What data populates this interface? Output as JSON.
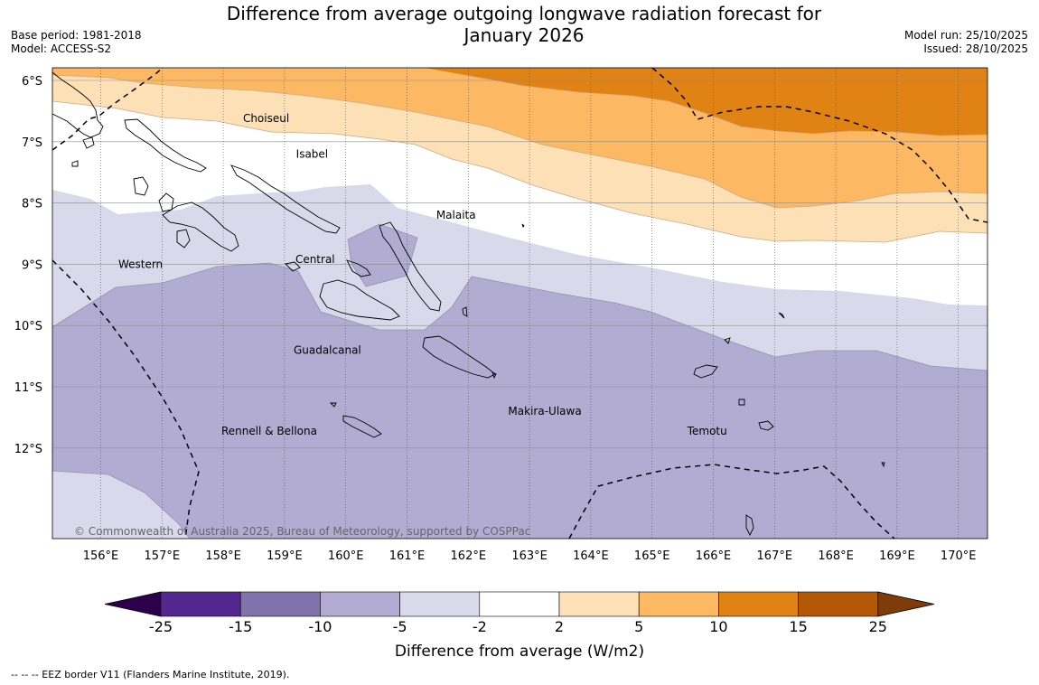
{
  "title_line1": "Difference from average outgoing longwave radiation forecast for",
  "title_line2": "January 2026",
  "base_period": "Base period: 1981-2018",
  "model": "Model: ACCESS-S2",
  "model_run": "Model run: 25/10/2025",
  "issued": "Issued: 28/10/2025",
  "latitudes": [
    {
      "value": -6,
      "label": "6°S"
    },
    {
      "value": -7,
      "label": "7°S"
    },
    {
      "value": -8,
      "label": "8°S"
    },
    {
      "value": -9,
      "label": "9°S"
    },
    {
      "value": -10,
      "label": "10°S"
    },
    {
      "value": -11,
      "label": "11°S"
    },
    {
      "value": -12,
      "label": "12°S"
    }
  ],
  "longitudes": [
    {
      "value": 156,
      "label": "156°E"
    },
    {
      "value": 157,
      "label": "157°E"
    },
    {
      "value": 158,
      "label": "158°E"
    },
    {
      "value": 159,
      "label": "159°E"
    },
    {
      "value": 160,
      "label": "160°E"
    },
    {
      "value": 161,
      "label": "161°E"
    },
    {
      "value": 162,
      "label": "162°E"
    },
    {
      "value": 163,
      "label": "163°E"
    },
    {
      "value": 164,
      "label": "164°E"
    },
    {
      "value": 165,
      "label": "165°E"
    },
    {
      "value": 166,
      "label": "166°E"
    },
    {
      "value": 167,
      "label": "167°E"
    },
    {
      "value": 168,
      "label": "168°E"
    },
    {
      "value": 169,
      "label": "169°E"
    },
    {
      "value": 170,
      "label": "170°E"
    }
  ],
  "regions": [
    {
      "name": "Choiseul",
      "lon": 158.7,
      "lat": -6.62
    },
    {
      "name": "Isabel",
      "lon": 159.45,
      "lat": -7.2
    },
    {
      "name": "Malaita",
      "lon": 161.8,
      "lat": -8.2
    },
    {
      "name": "Western",
      "lon": 156.65,
      "lat": -9.0
    },
    {
      "name": "Central",
      "lon": 159.5,
      "lat": -8.92
    },
    {
      "name": "Guadalcanal",
      "lon": 159.7,
      "lat": -10.4
    },
    {
      "name": "Makira-Ulawa",
      "lon": 163.25,
      "lat": -11.4
    },
    {
      "name": "Temotu",
      "lon": 165.9,
      "lat": -11.72
    },
    {
      "name": "Rennell & Bellona",
      "lon": 158.75,
      "lat": -11.72
    }
  ],
  "copyright": "© Commonwealth of Australia 2025, Bureau of Meteorology, supported by COSPPac",
  "colorbar": {
    "title": "Difference from average (W/m2)",
    "ticks": [
      "-25",
      "-15",
      "-10",
      "-5",
      "-2",
      "2",
      "5",
      "10",
      "15",
      "25"
    ],
    "colors": [
      "#54278f",
      "#8073ac",
      "#b2abd2",
      "#d8daeb",
      "#ffffff",
      "#fee0b6",
      "#fdb863",
      "#e08214",
      "#b35806"
    ],
    "under_color": "#2d004b",
    "over_color": "#7f3b08"
  },
  "footer": "--  --  -- EEZ border V11 (Flanders Marine Institute, 2019)."
}
